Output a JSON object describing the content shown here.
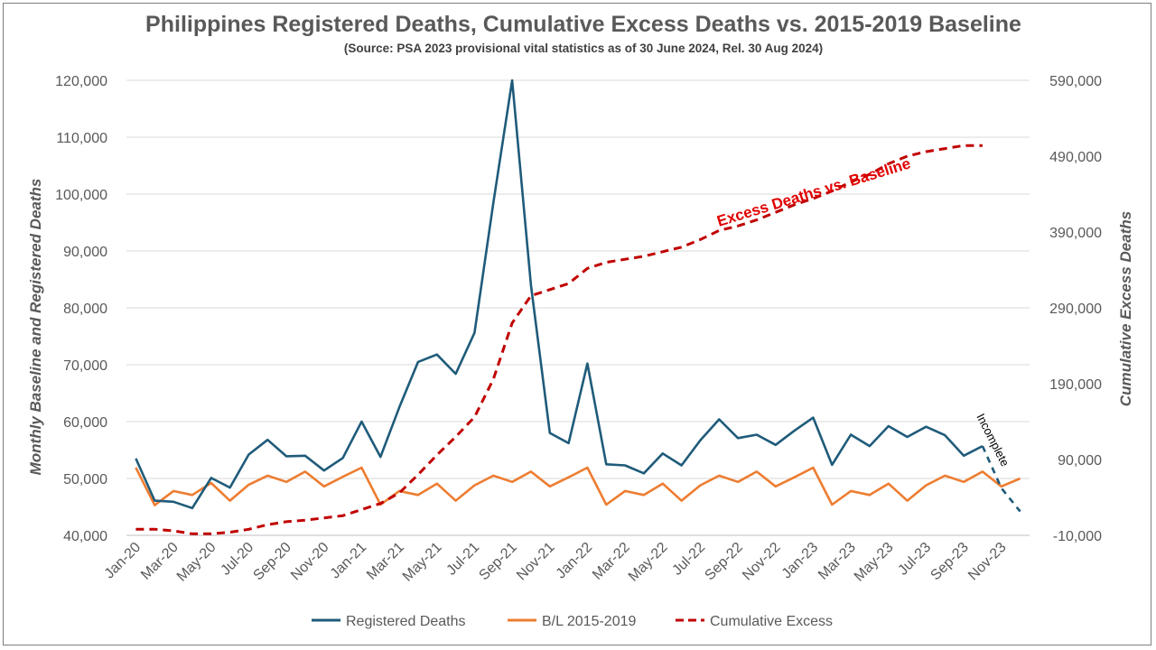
{
  "chart_data": {
    "type": "line",
    "title": "Philippines Registered Deaths, Cumulative Excess Deaths vs. 2015-2019 Baseline",
    "subtitle": "(Source: PSA 2023 provisional vital statistics as of 30 June 2024, Rel. 30 Aug 2024)",
    "ylabel": "Monthly Baseline and Registered Deaths",
    "y2label": "Cumulative Excess Deaths",
    "ylim": [
      40000,
      120000
    ],
    "y2lim": [
      -10000,
      590000
    ],
    "yticks": [
      "40,000",
      "50,000",
      "60,000",
      "70,000",
      "80,000",
      "90,000",
      "100,000",
      "110,000",
      "120,000"
    ],
    "y2ticks": [
      "-10,000",
      "90,000",
      "190,000",
      "290,000",
      "390,000",
      "490,000",
      "590,000"
    ],
    "x": [
      "Jan-20",
      "Feb-20",
      "Mar-20",
      "Apr-20",
      "May-20",
      "Jun-20",
      "Jul-20",
      "Aug-20",
      "Sep-20",
      "Oct-20",
      "Nov-20",
      "Dec-20",
      "Jan-21",
      "Feb-21",
      "Mar-21",
      "Apr-21",
      "May-21",
      "Jun-21",
      "Jul-21",
      "Aug-21",
      "Sep-21",
      "Oct-21",
      "Nov-21",
      "Dec-21",
      "Jan-22",
      "Feb-22",
      "Mar-22",
      "Apr-22",
      "May-22",
      "Jun-22",
      "Jul-22",
      "Aug-22",
      "Sep-22",
      "Oct-22",
      "Nov-22",
      "Dec-22",
      "Jan-23",
      "Feb-23",
      "Mar-23",
      "Apr-23",
      "May-23",
      "Jun-23",
      "Jul-23",
      "Aug-23",
      "Sep-23",
      "Oct-23",
      "Nov-23",
      "Dec-23"
    ],
    "xtick_labels": [
      "Jan-20",
      "Mar-20",
      "May-20",
      "Jul-20",
      "Sep-20",
      "Nov-20",
      "Jan-21",
      "Mar-21",
      "May-21",
      "Jul-21",
      "Sep-21",
      "Nov-21",
      "Jan-22",
      "Mar-22",
      "May-22",
      "Jul-22",
      "Sep-22",
      "Nov-22",
      "Jan-23",
      "Mar-23",
      "May-23",
      "Jul-23",
      "Sep-23",
      "Nov-23"
    ],
    "grid": true,
    "legend_position": "bottom",
    "series": [
      {
        "name": "Registered Deaths",
        "axis": "left",
        "color": "#1f5b7a",
        "style": "solid",
        "values": [
          53500,
          46100,
          45900,
          44800,
          50100,
          48400,
          54200,
          56800,
          53900,
          54000,
          51400,
          53600,
          60000,
          53800,
          62500,
          70500,
          71800,
          68400,
          75600,
          98500,
          120000,
          84000,
          58000,
          56200,
          70200,
          52500,
          52300,
          50900,
          54400,
          52300,
          56700,
          60400,
          57100,
          57700,
          55900,
          58400,
          60700,
          52400,
          57700,
          55700,
          59200,
          57300,
          59100,
          57600,
          54000,
          55700,
          null,
          null
        ],
        "incomplete_values": [
          null,
          null,
          null,
          null,
          null,
          null,
          null,
          null,
          null,
          null,
          null,
          null,
          null,
          null,
          null,
          null,
          null,
          null,
          null,
          null,
          null,
          null,
          null,
          null,
          null,
          null,
          null,
          null,
          null,
          null,
          null,
          null,
          null,
          null,
          null,
          null,
          null,
          null,
          null,
          null,
          null,
          null,
          null,
          null,
          null,
          55700,
          48300,
          44200
        ]
      },
      {
        "name": "B/L 2015-2019",
        "axis": "left",
        "color": "#ed7d31",
        "style": "solid",
        "values": [
          51900,
          45300,
          47800,
          47100,
          49200,
          46100,
          48900,
          50500,
          49400,
          51200,
          48600,
          50300,
          51900,
          45400,
          47800,
          47100,
          49100,
          46100,
          48800,
          50500,
          49400,
          51200,
          48600,
          50200,
          51900,
          45400,
          47800,
          47100,
          49100,
          46100,
          48800,
          50500,
          49400,
          51200,
          48600,
          50200,
          51900,
          45400,
          47800,
          47100,
          49100,
          46100,
          48800,
          50500,
          49400,
          51200,
          48600,
          50000
        ]
      },
      {
        "name": "Cumulative Excess",
        "axis": "right",
        "color": "#c00000",
        "style": "dashed",
        "values": [
          -2000,
          -2000,
          -4000,
          -8000,
          -8000,
          -6000,
          -2000,
          4000,
          8000,
          10000,
          13000,
          16000,
          24000,
          32000,
          46000,
          70000,
          96000,
          120000,
          146000,
          196000,
          270000,
          306000,
          314000,
          322000,
          342000,
          350000,
          354000,
          358000,
          364000,
          370000,
          380000,
          392000,
          398000,
          406000,
          416000,
          426000,
          434000,
          444000,
          456000,
          466000,
          480000,
          490000,
          496000,
          500000,
          504000,
          504000,
          null,
          null
        ]
      }
    ],
    "annotations": [
      {
        "text": "Excess Deaths vs. Baseline",
        "color": "#e00000"
      },
      {
        "text": "Incomplete",
        "color": "#000000"
      }
    ]
  }
}
